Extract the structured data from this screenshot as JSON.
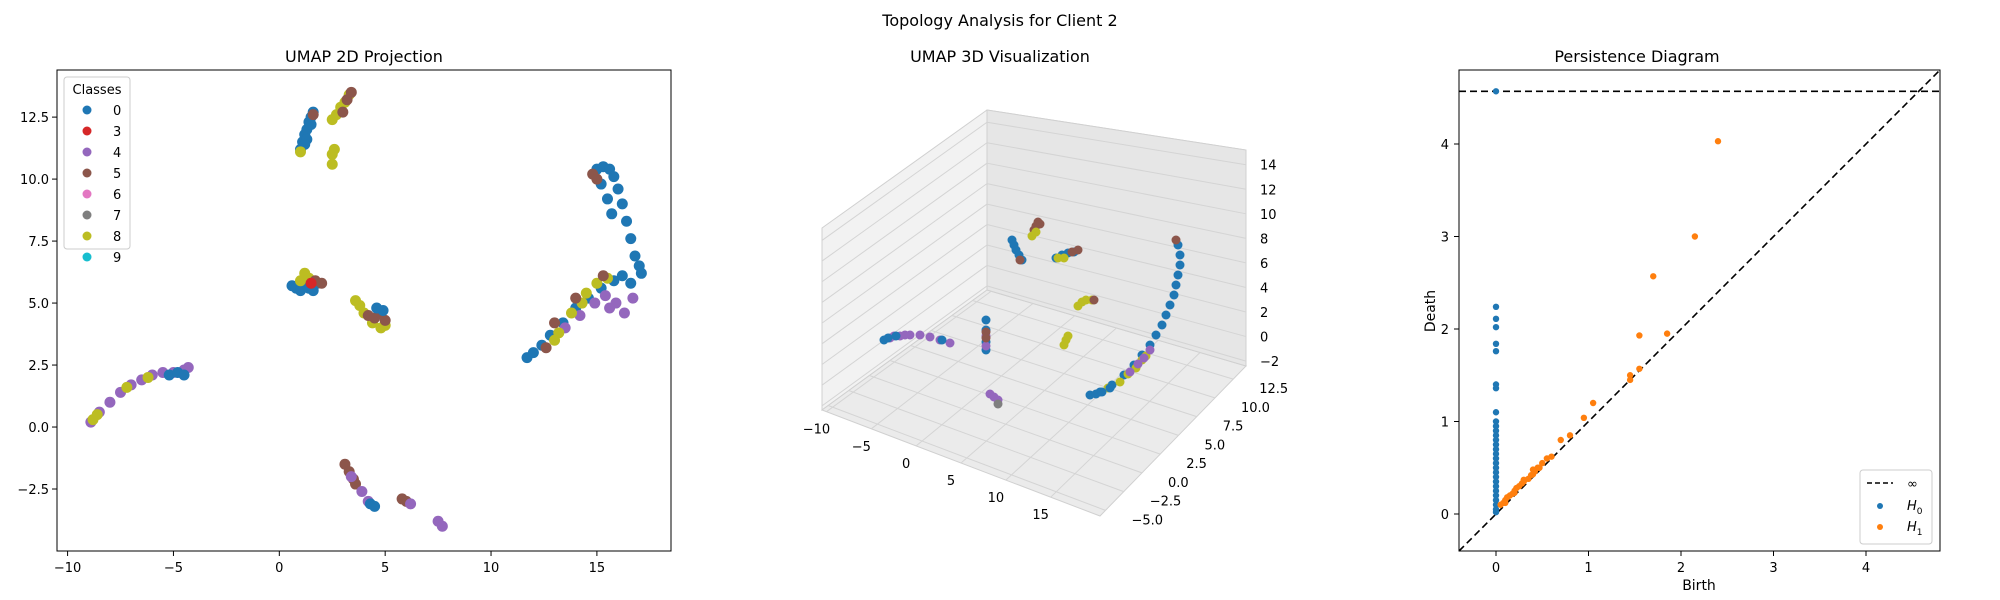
{
  "figure": {
    "suptitle": "Topology Analysis for Client 2"
  },
  "colors": {
    "class_0": "#1f77b4",
    "class_3": "#d62728",
    "class_4": "#9467bd",
    "class_5": "#8c564b",
    "class_6": "#e377c2",
    "class_7": "#7f7f7f",
    "class_8": "#bcbd22",
    "class_9": "#17becf",
    "h0": "#1f77b4",
    "h1": "#ff7f0e",
    "diagonal": "#000000"
  },
  "chart_data": [
    {
      "type": "scatter",
      "title": "UMAP 2D Projection",
      "xlabel": "",
      "ylabel": "",
      "xlim": [
        -10.5,
        18.5
      ],
      "ylim": [
        -5.0,
        14.4
      ],
      "xticks": [
        "−10",
        "−5",
        "0",
        "5",
        "10",
        "15"
      ],
      "xtick_values": [
        -10,
        -5,
        0,
        5,
        10,
        15
      ],
      "yticks": [
        "−2.5",
        "0.0",
        "2.5",
        "5.0",
        "7.5",
        "10.0",
        "12.5"
      ],
      "ytick_values": [
        -2.5,
        0,
        2.5,
        5,
        7.5,
        10,
        12.5
      ],
      "legend": {
        "title": "Classes",
        "position": "top-left",
        "entries": [
          "0",
          "3",
          "4",
          "5",
          "6",
          "7",
          "8",
          "9"
        ]
      },
      "clusters": [
        {
          "class": "0",
          "points": [
            [
              1.0,
              11.2
            ],
            [
              1.1,
              11.5
            ],
            [
              1.2,
              11.8
            ],
            [
              1.3,
              12.0
            ],
            [
              1.4,
              12.3
            ],
            [
              1.5,
              12.5
            ],
            [
              1.6,
              12.7
            ],
            [
              1.3,
              11.6
            ],
            [
              1.5,
              12.2
            ],
            [
              1.2,
              11.4
            ]
          ]
        },
        {
          "class": "8",
          "points": [
            [
              2.5,
              12.4
            ],
            [
              2.7,
              12.6
            ],
            [
              2.9,
              12.9
            ],
            [
              3.1,
              13.1
            ],
            [
              3.3,
              13.4
            ],
            [
              2.5,
              11.0
            ],
            [
              2.5,
              10.6
            ],
            [
              2.6,
              11.2
            ],
            [
              1.0,
              11.1
            ]
          ]
        },
        {
          "class": "5",
          "points": [
            [
              3.0,
              12.7
            ],
            [
              3.2,
              13.2
            ],
            [
              3.4,
              13.5
            ],
            [
              1.6,
              12.6
            ]
          ]
        },
        {
          "class": "0",
          "points": [
            [
              0.6,
              5.7
            ],
            [
              0.8,
              5.6
            ],
            [
              1.0,
              5.5
            ],
            [
              1.2,
              5.8
            ],
            [
              1.4,
              5.6
            ],
            [
              1.6,
              5.5
            ],
            [
              1.8,
              5.8
            ]
          ]
        },
        {
          "class": "8",
          "points": [
            [
              1.2,
              6.2
            ],
            [
              1.4,
              6.0
            ],
            [
              1.0,
              5.9
            ]
          ]
        },
        {
          "class": "5",
          "points": [
            [
              1.7,
              5.9
            ],
            [
              2.0,
              5.8
            ]
          ]
        },
        {
          "class": "3",
          "points": [
            [
              1.5,
              5.8
            ]
          ]
        },
        {
          "class": "8",
          "points": [
            [
              3.6,
              5.1
            ],
            [
              3.8,
              4.9
            ],
            [
              4.0,
              4.6
            ],
            [
              4.4,
              4.2
            ],
            [
              4.8,
              4.0
            ],
            [
              5.0,
              4.1
            ]
          ]
        },
        {
          "class": "5",
          "points": [
            [
              4.2,
              4.5
            ],
            [
              4.5,
              4.4
            ],
            [
              4.8,
              4.6
            ],
            [
              5.0,
              4.3
            ]
          ]
        },
        {
          "class": "0",
          "points": [
            [
              4.9,
              4.7
            ],
            [
              4.6,
              4.8
            ]
          ]
        },
        {
          "class": "4",
          "points": [
            [
              -8.9,
              0.2
            ],
            [
              -8.5,
              0.6
            ],
            [
              -8.0,
              1.0
            ],
            [
              -7.5,
              1.4
            ],
            [
              -7.0,
              1.7
            ],
            [
              -6.5,
              1.9
            ],
            [
              -6.0,
              2.1
            ],
            [
              -5.5,
              2.2
            ],
            [
              -5.0,
              2.2
            ],
            [
              -4.5,
              2.3
            ],
            [
              -4.3,
              2.4
            ]
          ]
        },
        {
          "class": "8",
          "points": [
            [
              -8.8,
              0.3
            ],
            [
              -8.6,
              0.5
            ],
            [
              -7.2,
              1.6
            ],
            [
              -6.2,
              2.0
            ]
          ]
        },
        {
          "class": "0",
          "points": [
            [
              -5.2,
              2.1
            ],
            [
              -4.8,
              2.2
            ],
            [
              -4.5,
              2.1
            ]
          ]
        },
        {
          "class": "5",
          "points": [
            [
              3.1,
              -1.5
            ],
            [
              3.3,
              -1.8
            ],
            [
              3.5,
              -2.1
            ],
            [
              3.6,
              -2.3
            ],
            [
              5.8,
              -2.9
            ],
            [
              6.0,
              -3.0
            ]
          ]
        },
        {
          "class": "4",
          "points": [
            [
              3.4,
              -2.0
            ],
            [
              3.9,
              -2.6
            ],
            [
              4.2,
              -3.0
            ],
            [
              6.2,
              -3.1
            ],
            [
              7.5,
              -3.8
            ],
            [
              7.7,
              -4.0
            ]
          ]
        },
        {
          "class": "0",
          "points": [
            [
              4.3,
              -3.1
            ],
            [
              4.5,
              -3.2
            ]
          ]
        },
        {
          "class": "0",
          "points": [
            [
              15.0,
              10.4
            ],
            [
              15.3,
              10.5
            ],
            [
              15.6,
              10.4
            ],
            [
              15.8,
              10.1
            ],
            [
              16.0,
              9.6
            ],
            [
              16.2,
              9.0
            ],
            [
              16.4,
              8.3
            ],
            [
              16.6,
              7.6
            ],
            [
              16.8,
              6.9
            ],
            [
              17.0,
              6.5
            ],
            [
              17.1,
              6.2
            ],
            [
              15.2,
              9.8
            ],
            [
              15.5,
              9.2
            ],
            [
              15.7,
              8.6
            ]
          ]
        },
        {
          "class": "5",
          "points": [
            [
              14.8,
              10.2
            ],
            [
              15.0,
              10.0
            ]
          ]
        },
        {
          "class": "0",
          "points": [
            [
              11.7,
              2.8
            ],
            [
              12.0,
              3.0
            ],
            [
              12.4,
              3.3
            ],
            [
              12.8,
              3.7
            ],
            [
              13.4,
              4.2
            ],
            [
              14.0,
              4.8
            ],
            [
              14.6,
              5.2
            ],
            [
              15.2,
              5.6
            ],
            [
              15.8,
              5.9
            ],
            [
              16.2,
              6.1
            ],
            [
              16.6,
              5.8
            ]
          ]
        },
        {
          "class": "4",
          "points": [
            [
              13.5,
              4.0
            ],
            [
              14.2,
              4.5
            ],
            [
              14.9,
              5.0
            ],
            [
              15.4,
              5.3
            ],
            [
              15.9,
              5.0
            ],
            [
              16.3,
              4.6
            ],
            [
              16.7,
              5.2
            ],
            [
              15.6,
              4.8
            ]
          ]
        },
        {
          "class": "8",
          "points": [
            [
              13.2,
              3.8
            ],
            [
              13.8,
              4.6
            ],
            [
              14.5,
              5.4
            ],
            [
              15.0,
              5.8
            ],
            [
              15.5,
              6.0
            ],
            [
              13.0,
              3.5
            ],
            [
              14.3,
              5.0
            ]
          ]
        },
        {
          "class": "5",
          "points": [
            [
              13.0,
              4.2
            ],
            [
              14.0,
              5.2
            ],
            [
              15.3,
              6.1
            ],
            [
              12.6,
              3.2
            ]
          ]
        }
      ]
    },
    {
      "type": "scatter",
      "title": "UMAP 3D Visualization",
      "xticks": [
        "−10",
        "−5",
        "0",
        "5",
        "10",
        "15"
      ],
      "yticks": [
        "−5.0",
        "−2.5",
        "0.0",
        "2.5",
        "5.0",
        "7.5",
        "10.0",
        "12.5"
      ],
      "zticks": [
        "−2",
        "0",
        "2",
        "4",
        "6",
        "8",
        "10",
        "12",
        "14"
      ]
    },
    {
      "type": "scatter",
      "title": "Persistence Diagram",
      "xlabel": "Birth",
      "ylabel": "Death",
      "xlim": [
        -0.4,
        4.8
      ],
      "ylim": [
        -0.4,
        4.8
      ],
      "xticks": [
        "0",
        "1",
        "2",
        "3",
        "4"
      ],
      "xtick_values": [
        0,
        1,
        2,
        3,
        4
      ],
      "yticks": [
        "0",
        "1",
        "2",
        "3",
        "4"
      ],
      "ytick_values": [
        0,
        1,
        2,
        3,
        4
      ],
      "infinity_death": 4.57,
      "legend": {
        "position": "bottom-right",
        "entries": [
          "∞",
          "H",
          "H"
        ],
        "subscripts": [
          "",
          "0",
          "1"
        ]
      },
      "series": [
        {
          "name": "H0",
          "points": [
            [
              0,
              4.57
            ],
            [
              0,
              2.24
            ],
            [
              0,
              2.11
            ],
            [
              0,
              2.02
            ],
            [
              0,
              1.84
            ],
            [
              0,
              1.76
            ],
            [
              0,
              1.4
            ],
            [
              0,
              1.36
            ],
            [
              0,
              1.1
            ],
            [
              0,
              1.0
            ],
            [
              0,
              0.95
            ],
            [
              0,
              0.9
            ],
            [
              0,
              0.85
            ],
            [
              0,
              0.8
            ],
            [
              0,
              0.75
            ],
            [
              0,
              0.7
            ],
            [
              0,
              0.65
            ],
            [
              0,
              0.6
            ],
            [
              0,
              0.55
            ],
            [
              0,
              0.5
            ],
            [
              0,
              0.45
            ],
            [
              0,
              0.4
            ],
            [
              0,
              0.35
            ],
            [
              0,
              0.3
            ],
            [
              0,
              0.25
            ],
            [
              0,
              0.2
            ],
            [
              0,
              0.15
            ],
            [
              0,
              0.1
            ],
            [
              0,
              0.05
            ],
            [
              0,
              0.02
            ]
          ]
        },
        {
          "name": "H1",
          "points": [
            [
              2.4,
              4.03
            ],
            [
              2.15,
              3.0
            ],
            [
              1.7,
              2.57
            ],
            [
              1.85,
              1.95
            ],
            [
              1.55,
              1.93
            ],
            [
              1.55,
              1.57
            ],
            [
              1.45,
              1.5
            ],
            [
              1.45,
              1.45
            ],
            [
              1.05,
              1.2
            ],
            [
              0.95,
              1.04
            ],
            [
              0.8,
              0.85
            ],
            [
              0.7,
              0.8
            ],
            [
              0.6,
              0.62
            ],
            [
              0.55,
              0.6
            ],
            [
              0.5,
              0.55
            ],
            [
              0.45,
              0.5
            ],
            [
              0.4,
              0.48
            ],
            [
              0.38,
              0.42
            ],
            [
              0.35,
              0.38
            ],
            [
              0.3,
              0.35
            ],
            [
              0.28,
              0.33
            ],
            [
              0.25,
              0.3
            ],
            [
              0.22,
              0.28
            ],
            [
              0.2,
              0.25
            ],
            [
              0.18,
              0.22
            ],
            [
              0.15,
              0.2
            ],
            [
              0.12,
              0.18
            ],
            [
              0.1,
              0.15
            ],
            [
              0.08,
              0.12
            ],
            [
              0.05,
              0.1
            ],
            [
              0.4,
              0.43
            ],
            [
              0.42,
              0.46
            ],
            [
              0.47,
              0.5
            ],
            [
              0.3,
              0.37
            ],
            [
              0.2,
              0.23
            ],
            [
              0.1,
              0.12
            ]
          ]
        }
      ]
    }
  ]
}
